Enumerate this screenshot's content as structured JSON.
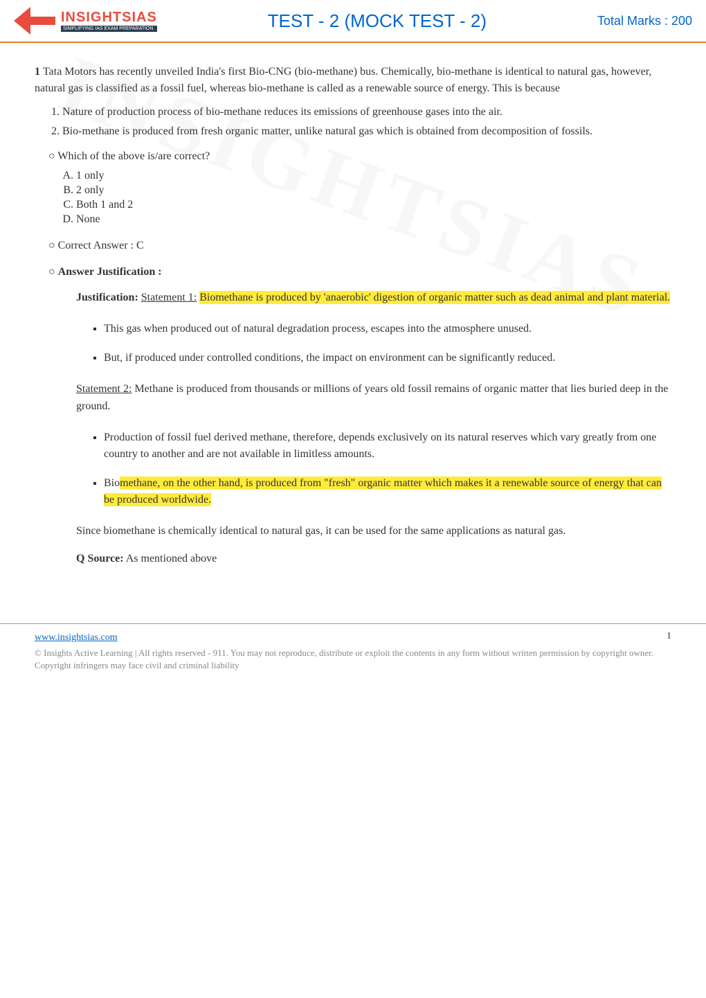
{
  "header": {
    "logo_title": "INSIGHTSIAS",
    "logo_sub": "SIMPLIFYING IAS EXAM PREPARATION",
    "test_title": "TEST - 2 (MOCK TEST - 2)",
    "total_marks": "Total Marks : 200"
  },
  "watermark_text": "INSIGHTSIAS",
  "question": {
    "number": "1",
    "text": "Tata Motors has recently unveiled India's first Bio-CNG (bio-methane) bus. Chemically, bio-methane is identical to natural gas, however, natural gas is classified as a fossil fuel, whereas bio-methane is called as a renewable source of energy. This is because",
    "statements": [
      "Nature of production process of bio-methane reduces its emissions of greenhouse gases into the air.",
      "Bio-methane is produced from fresh organic matter, unlike natural gas which is obtained from decomposition of fossils."
    ],
    "which_label": "Which of the above is/are correct?",
    "options": [
      "1 only",
      "2 only",
      "Both 1 and 2",
      "None"
    ],
    "correct_answer_label": "Correct Answer : C",
    "answer_justification_label": "Answer Justification :",
    "justification_label": "Justification:",
    "statement1_label": "Statement 1:",
    "statement1_highlight": "Biomethane is produced by 'anaerobic' digestion of organic matter such as dead animal and plant material.",
    "statement1_bullets": [
      "This gas when produced out of natural degradation process, escapes into the atmosphere unused.",
      "But, if produced under controlled conditions, the impact on environment can be significantly reduced."
    ],
    "statement2_label": "Statement 2:",
    "statement2_text": "Methane is produced from thousands or millions of years old fossil remains of organic matter that lies buried deep in the ground.",
    "statement2_bullets": [
      "Production of fossil fuel derived methane, therefore, depends exclusively on its natural reserves which vary greatly from one country to another and are not available in limitless amounts."
    ],
    "statement2_highlight_prefix": "Bio",
    "statement2_highlight": "methane, on the other hand, is produced from \"fresh\" organic matter which makes it a renewable source of energy that can be produced worldwide.",
    "conclusion": "Since biomethane is chemically identical to natural gas, it can be used for the same applications as natural gas.",
    "q_source_label": "Q Source:",
    "q_source_text": "As mentioned above"
  },
  "footer": {
    "link": "www.insightsias.com",
    "page_num": "1",
    "copyright": "© Insights Active Learning | All rights reserved - 911. You may not reproduce, distribute or exploit the contents in any form without written permission by copyright owner. Copyright infringers may face civil and criminal liability"
  },
  "colors": {
    "accent_orange": "#e67e22",
    "accent_red": "#e74c3c",
    "link_blue": "#0066cc",
    "highlight_yellow": "#ffeb3b",
    "text_gray": "#888888"
  }
}
